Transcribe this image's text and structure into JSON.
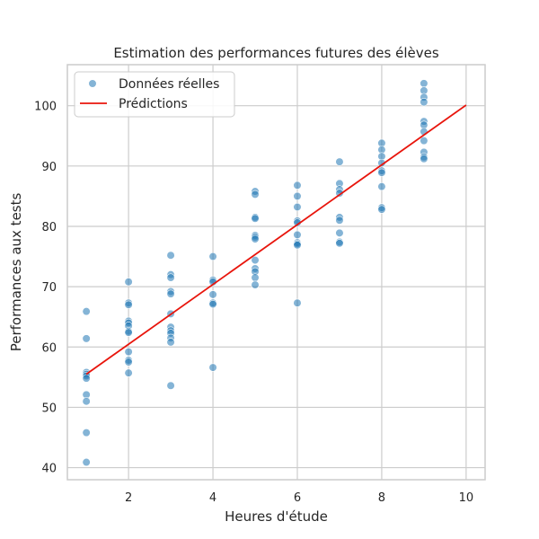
{
  "colors": {
    "points": "#1f77b4",
    "prediction_line": "#e8150c",
    "grid": "#cccccc",
    "frame": "#cccccc",
    "background": "#ffffff"
  },
  "chart_data": {
    "type": "scatter",
    "title": "Estimation des performances futures des élèves",
    "xlabel": "Heures d'étude",
    "ylabel": "Performances aux tests",
    "xlim": [
      0.55,
      10.45
    ],
    "ylim": [
      38.0,
      106.8
    ],
    "xticks": [
      2,
      4,
      6,
      8,
      10
    ],
    "yticks": [
      40,
      50,
      60,
      70,
      80,
      90,
      100
    ],
    "grid": true,
    "legend_position": "top-left",
    "series": [
      {
        "name": "Données réelles",
        "kind": "scatter",
        "points": [
          [
            1,
            65.9
          ],
          [
            1,
            61.4
          ],
          [
            1,
            55.8
          ],
          [
            1,
            55.5
          ],
          [
            1,
            55.2
          ],
          [
            1,
            54.8
          ],
          [
            1,
            52.1
          ],
          [
            1,
            51.0
          ],
          [
            1,
            45.8
          ],
          [
            1,
            40.9
          ],
          [
            2,
            70.8
          ],
          [
            2,
            67.3
          ],
          [
            2,
            67.0
          ],
          [
            2,
            64.3
          ],
          [
            2,
            64.0
          ],
          [
            2,
            63.5
          ],
          [
            2,
            62.6
          ],
          [
            2,
            62.4
          ],
          [
            2,
            59.2
          ],
          [
            2,
            57.8
          ],
          [
            2,
            57.5
          ],
          [
            2,
            55.7
          ],
          [
            3,
            75.2
          ],
          [
            3,
            72.0
          ],
          [
            3,
            71.5
          ],
          [
            3,
            69.2
          ],
          [
            3,
            68.8
          ],
          [
            3,
            65.5
          ],
          [
            3,
            63.3
          ],
          [
            3,
            62.7
          ],
          [
            3,
            62.3
          ],
          [
            3,
            61.5
          ],
          [
            3,
            60.8
          ],
          [
            3,
            53.6
          ],
          [
            4,
            75.0
          ],
          [
            4,
            71.1
          ],
          [
            4,
            70.8
          ],
          [
            4,
            68.7
          ],
          [
            4,
            67.3
          ],
          [
            4,
            67.1
          ],
          [
            4,
            56.6
          ],
          [
            5,
            85.8
          ],
          [
            5,
            85.3
          ],
          [
            5,
            81.5
          ],
          [
            5,
            81.3
          ],
          [
            5,
            78.5
          ],
          [
            5,
            78.2
          ],
          [
            5,
            77.9
          ],
          [
            5,
            74.4
          ],
          [
            5,
            73.0
          ],
          [
            5,
            72.5
          ],
          [
            5,
            71.5
          ],
          [
            5,
            70.3
          ],
          [
            6,
            86.8
          ],
          [
            6,
            85.0
          ],
          [
            6,
            83.2
          ],
          [
            6,
            80.9
          ],
          [
            6,
            80.6
          ],
          [
            6,
            78.6
          ],
          [
            6,
            77.3
          ],
          [
            6,
            77.1
          ],
          [
            6,
            76.9
          ],
          [
            6,
            67.3
          ],
          [
            7,
            90.7
          ],
          [
            7,
            87.1
          ],
          [
            7,
            86.1
          ],
          [
            7,
            85.5
          ],
          [
            7,
            81.5
          ],
          [
            7,
            81.0
          ],
          [
            7,
            78.9
          ],
          [
            7,
            77.4
          ],
          [
            7,
            77.2
          ],
          [
            8,
            93.8
          ],
          [
            8,
            92.7
          ],
          [
            8,
            91.6
          ],
          [
            8,
            90.5
          ],
          [
            8,
            89.2
          ],
          [
            8,
            88.9
          ],
          [
            8,
            86.6
          ],
          [
            8,
            83.1
          ],
          [
            8,
            82.8
          ],
          [
            9,
            103.7
          ],
          [
            9,
            102.5
          ],
          [
            9,
            101.4
          ],
          [
            9,
            100.6
          ],
          [
            9,
            97.4
          ],
          [
            9,
            96.8
          ],
          [
            9,
            95.7
          ],
          [
            9,
            94.2
          ],
          [
            9,
            92.3
          ],
          [
            9,
            91.5
          ],
          [
            9,
            91.2
          ]
        ]
      },
      {
        "name": "Prédictions",
        "kind": "line",
        "x": [
          1,
          10
        ],
        "y": [
          55.5,
          100.1
        ]
      }
    ]
  }
}
